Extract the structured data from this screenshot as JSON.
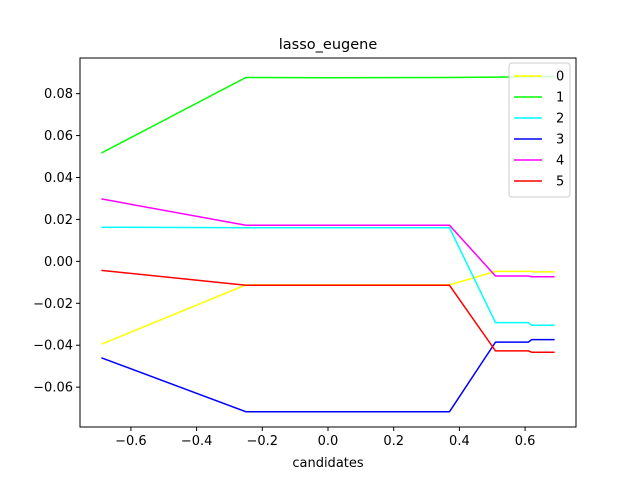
{
  "chart_data": {
    "type": "line",
    "title": "lasso_eugene",
    "xlabel": "candidates",
    "ylabel": "",
    "xlim": [
      -0.755,
      0.755
    ],
    "ylim": [
      -0.079,
      0.097
    ],
    "xticks": [
      -0.6,
      -0.4,
      -0.2,
      0.0,
      0.2,
      0.4,
      0.6
    ],
    "xtick_labels": [
      "−0.6",
      "−0.4",
      "−0.2",
      "0.0",
      "0.2",
      "0.4",
      "0.6"
    ],
    "yticks": [
      -0.06,
      -0.04,
      -0.02,
      0.0,
      0.02,
      0.04,
      0.06,
      0.08
    ],
    "ytick_labels": [
      "−0.06",
      "−0.04",
      "−0.02",
      "0.00",
      "0.02",
      "0.04",
      "0.06",
      "0.08"
    ],
    "grid": false,
    "legend": "top-right",
    "series": [
      {
        "name": "0",
        "color": "#ffff00",
        "x": [
          -0.69,
          -0.25,
          0.37,
          0.51,
          0.62,
          0.63,
          0.69
        ],
        "y": [
          -0.0395,
          -0.0112,
          -0.0112,
          -0.0048,
          -0.0048,
          -0.005,
          -0.005
        ]
      },
      {
        "name": "1",
        "color": "#00ff00",
        "x": [
          -0.69,
          -0.25,
          0.0,
          0.37,
          0.51,
          0.62,
          0.69
        ],
        "y": [
          0.0517,
          0.0877,
          0.0876,
          0.0877,
          0.0879,
          0.0881,
          0.0882
        ]
      },
      {
        "name": "2",
        "color": "#00ffff",
        "x": [
          -0.69,
          -0.25,
          0.37,
          0.51,
          0.61,
          0.62,
          0.69
        ],
        "y": [
          0.0163,
          0.016,
          0.016,
          -0.0292,
          -0.0292,
          -0.0305,
          -0.0305
        ]
      },
      {
        "name": "3",
        "color": "#0000ff",
        "x": [
          -0.69,
          -0.25,
          0.37,
          0.51,
          0.61,
          0.62,
          0.69
        ],
        "y": [
          -0.046,
          -0.0717,
          -0.0717,
          -0.0385,
          -0.0385,
          -0.0373,
          -0.0373
        ]
      },
      {
        "name": "4",
        "color": "#ff00ff",
        "x": [
          -0.69,
          -0.25,
          0.37,
          0.51,
          0.61,
          0.62,
          0.69
        ],
        "y": [
          0.0298,
          0.0172,
          0.0172,
          -0.007,
          -0.007,
          -0.0073,
          -0.0073
        ]
      },
      {
        "name": "5",
        "color": "#ff0000",
        "x": [
          -0.69,
          -0.25,
          0.37,
          0.51,
          0.61,
          0.62,
          0.69
        ],
        "y": [
          -0.0043,
          -0.0114,
          -0.0114,
          -0.0427,
          -0.0427,
          -0.0433,
          -0.0433
        ]
      }
    ]
  }
}
